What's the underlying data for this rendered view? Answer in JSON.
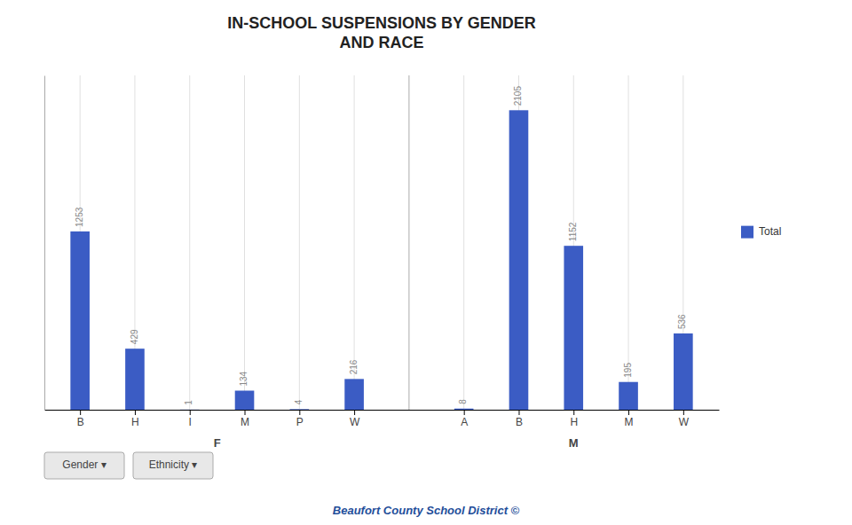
{
  "chart_data": {
    "type": "bar",
    "title": "IN-SCHOOL SUSPENSIONS BY GENDER\nAND RACE",
    "categories": [
      "B",
      "H",
      "I",
      "M",
      "P",
      "W",
      "A",
      "B",
      "H",
      "M",
      "W"
    ],
    "category_groups": [
      "F",
      "F",
      "F",
      "F",
      "F",
      "F",
      "M",
      "M",
      "M",
      "M",
      "M"
    ],
    "series": [
      {
        "name": "Total",
        "color": "#3B5CC4",
        "values": [
          1253,
          429,
          1,
          134,
          4,
          216,
          8,
          2105,
          1152,
          195,
          536
        ]
      }
    ],
    "ylim": [
      0,
      2350
    ],
    "grid": true,
    "legend": "right",
    "data_labels": true,
    "tick_labels": "x",
    "footer": "Beaufort County School District ©",
    "buttons": [
      "Gender ▾",
      "Ethnicity ▾"
    ]
  }
}
